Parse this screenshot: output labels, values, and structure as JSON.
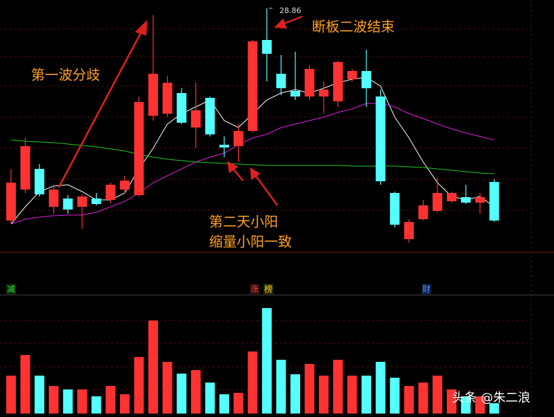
{
  "chart_data": [
    {
      "type": "candlestick",
      "ylim": [
        18.27,
        29.22
      ],
      "open": [
        19.62,
        20.97,
        21.87,
        20.22,
        20.58,
        20.22,
        20.58,
        20.52,
        20.97,
        20.73,
        24.18,
        24.27,
        25.17,
        23.67,
        24.96,
        22.92,
        22.86,
        23.52,
        27.48,
        26.01,
        25.26,
        25.02,
        25.02,
        24.81,
        25.77,
        26.13,
        25.02,
        20.82,
        18.81,
        19.68,
        20.04,
        20.46,
        20.64,
        20.4,
        21.3
      ],
      "high": [
        21.87,
        23.22,
        22.08,
        21.18,
        20.73,
        20.76,
        20.82,
        21.27,
        21.57,
        25.02,
        28.56,
        25.92,
        25.38,
        25.62,
        25.02,
        23.28,
        23.82,
        27.48,
        28.86,
        26.82,
        26.97,
        26.37,
        25.68,
        26.58,
        26.22,
        27.06,
        25.32,
        20.88,
        19.68,
        20.52,
        21.48,
        20.88,
        21.18,
        20.82,
        21.42
      ],
      "low": [
        19.47,
        20.82,
        20.67,
        19.92,
        19.92,
        19.26,
        20.28,
        20.37,
        20.82,
        20.67,
        23.97,
        24.12,
        23.82,
        22.77,
        23.28,
        22.38,
        22.17,
        23.46,
        25.68,
        25.08,
        24.87,
        24.87,
        24.27,
        24.57,
        25.68,
        24.57,
        21.18,
        19.32,
        18.66,
        19.62,
        19.98,
        20.4,
        20.34,
        19.92,
        19.56
      ],
      "close": [
        21.27,
        22.86,
        20.76,
        20.97,
        20.1,
        20.67,
        20.34,
        21.18,
        21.36,
        24.78,
        26.01,
        25.62,
        23.88,
        24.42,
        23.37,
        22.8,
        23.52,
        27.42,
        26.88,
        25.38,
        25.02,
        26.22,
        25.32,
        26.52,
        26.13,
        25.38,
        21.33,
        19.44,
        19.56,
        20.28,
        20.82,
        20.82,
        20.4,
        20.64,
        19.62
      ],
      "up_color": "#ff3232",
      "down_color": "#54ffff",
      "lines": [
        {
          "color": "#ffffff",
          "values": [
            19.47,
            20.22,
            20.88,
            21.12,
            21.18,
            20.88,
            20.52,
            20.52,
            20.82,
            21.87,
            22.77,
            23.82,
            24.27,
            24.57,
            24.87,
            23.97,
            23.67,
            24.27,
            24.87,
            25.17,
            25.32,
            25.17,
            25.38,
            25.62,
            25.77,
            25.86,
            25.47,
            24.12,
            23.22,
            22.17,
            21.27,
            20.67,
            20.52,
            20.67,
            20.22
          ]
        },
        {
          "color": "#e020e0",
          "values": [
            19.47,
            19.68,
            19.77,
            19.83,
            19.86,
            19.86,
            19.98,
            20.22,
            20.46,
            20.82,
            21.27,
            21.57,
            21.87,
            22.17,
            22.38,
            22.56,
            22.92,
            23.22,
            23.37,
            23.67,
            23.82,
            23.97,
            24.12,
            24.33,
            24.48,
            24.72,
            24.72,
            24.57,
            24.27,
            24.06,
            23.82,
            23.61,
            23.43,
            23.28,
            23.13
          ]
        },
        {
          "color": "#22cc22",
          "values": [
            23.13,
            23.07,
            23.04,
            23.01,
            22.95,
            22.89,
            22.83,
            22.74,
            22.65,
            22.5,
            22.38,
            22.29,
            22.23,
            22.17,
            22.14,
            22.11,
            22.08,
            22.05,
            22.02,
            22.02,
            22.02,
            22.02,
            22.02,
            22.02,
            21.99,
            21.99,
            21.99,
            21.99,
            21.96,
            21.93,
            21.87,
            21.81,
            21.75,
            21.69,
            21.66
          ]
        }
      ],
      "annotations": [
        "第一波分歧",
        "断板二波结束",
        "第二天小阳",
        "缩量小阳一致"
      ],
      "annotation_color": "#ffa020"
    },
    {
      "type": "volume-bar",
      "ylim": [
        0,
        160
      ],
      "values": [
        55,
        85,
        55,
        40,
        35,
        35,
        25,
        40,
        28,
        82,
        135,
        75,
        58,
        63,
        45,
        28,
        30,
        90,
        153,
        78,
        57,
        72,
        55,
        78,
        55,
        55,
        75,
        52,
        40,
        45,
        55,
        35,
        25,
        25,
        15
      ]
    }
  ],
  "markers": [
    "减",
    "涨",
    "榜",
    "财"
  ],
  "watermark": "头条 @朱二浪"
}
